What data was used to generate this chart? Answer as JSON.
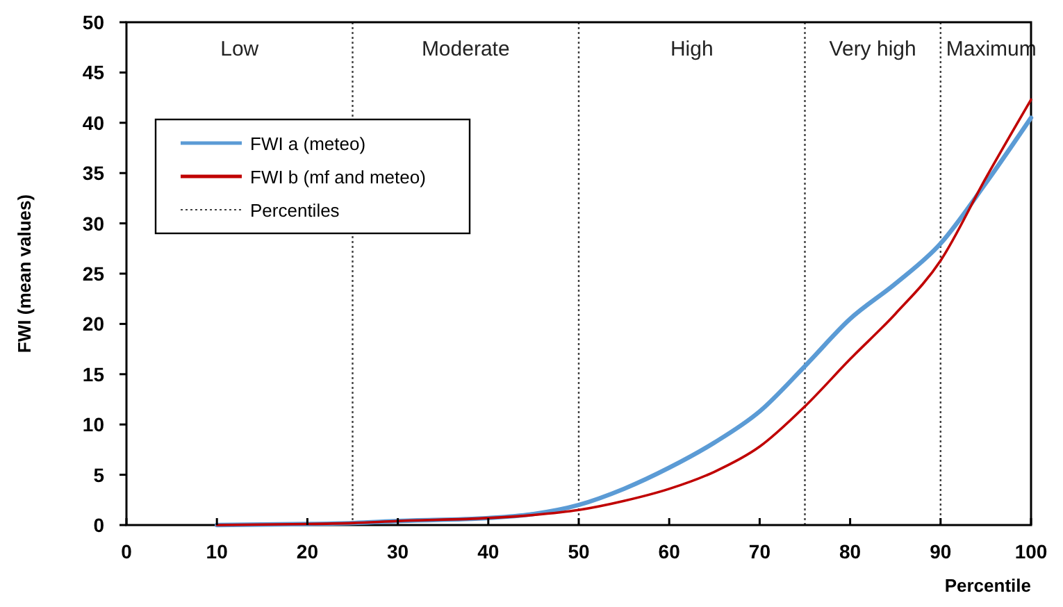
{
  "chart_data": {
    "type": "line",
    "xlabel": "Percentile",
    "ylabel": "FWI (mean values)",
    "x": [
      10,
      20,
      25,
      30,
      40,
      45,
      50,
      55,
      60,
      65,
      70,
      75,
      80,
      85,
      90,
      95,
      100
    ],
    "series": [
      {
        "name": "FWI a (meteo)",
        "color": "#5b9bd5",
        "values": [
          0,
          0.1,
          0.2,
          0.4,
          0.7,
          1.1,
          2.0,
          3.6,
          5.7,
          8.2,
          11.3,
          15.8,
          20.5,
          24,
          28,
          34,
          40.5
        ]
      },
      {
        "name": "FWI b (mf and meteo)",
        "color": "#c00000",
        "values": [
          0,
          0.1,
          0.2,
          0.4,
          0.7,
          1.0,
          1.5,
          2.4,
          3.6,
          5.3,
          7.8,
          11.8,
          16.5,
          21,
          26.3,
          34.5,
          42.3
        ]
      }
    ],
    "xlim": [
      0,
      100
    ],
    "xticks": [
      0,
      10,
      20,
      30,
      40,
      50,
      60,
      70,
      80,
      90,
      100
    ],
    "ylim": [
      0,
      50
    ],
    "yticks": [
      0,
      5,
      10,
      15,
      20,
      25,
      30,
      35,
      40,
      45,
      50
    ],
    "ref_lines": [
      {
        "axis": "x",
        "value": 25,
        "label": "Percentiles",
        "line_style": "dotted",
        "color": "#404040"
      },
      {
        "axis": "x",
        "value": 50,
        "label": null,
        "line_style": "dotted",
        "color": "#404040"
      },
      {
        "axis": "x",
        "value": 75,
        "label": null,
        "line_style": "dotted",
        "color": "#404040"
      },
      {
        "axis": "x",
        "value": 90,
        "label": null,
        "line_style": "dotted",
        "color": "#404040"
      }
    ],
    "annotations": [
      "Low",
      "Moderate",
      "High",
      "Very high",
      "Maximum"
    ],
    "grid": false,
    "legend": "top left",
    "line_style": "solid",
    "marker": "none"
  }
}
